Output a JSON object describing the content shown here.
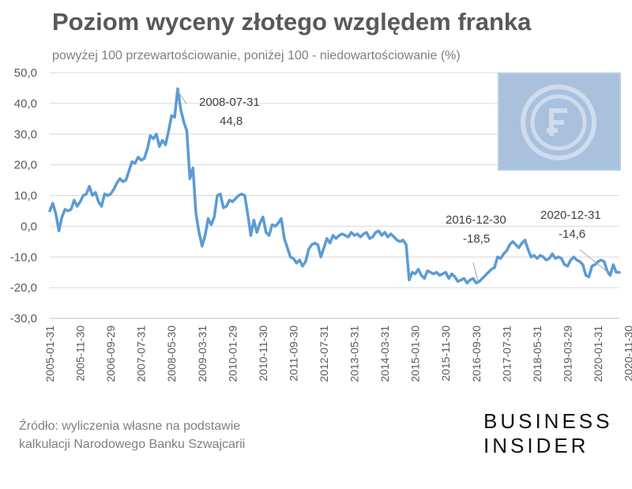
{
  "chart_data": {
    "type": "line",
    "title": "Poziom wyceny złotego względem franka",
    "subtitle": "powyżej 100 przewartościowanie, poniżej 100 - niedowartościowanie (%)",
    "ylim": [
      -30,
      50
    ],
    "y_ticks": [
      "50,0",
      "40,0",
      "30,0",
      "20,0",
      "10,0",
      "0,0",
      "-10,0",
      "-20,0",
      "-30,0"
    ],
    "x_tick_labels": [
      "2005-01-31",
      "2005-11-30",
      "2006-09-29",
      "2007-07-31",
      "2008-05-30",
      "2009-03-31",
      "2010-01-29",
      "2010-11-30",
      "2011-09-30",
      "2012-07-31",
      "2013-05-31",
      "2014-03-31",
      "2015-01-30",
      "2015-11-30",
      "2016-09-30",
      "2017-07-31",
      "2018-05-31",
      "2019-03-29",
      "2020-01-31",
      "2020-11-30"
    ],
    "x_start": "2005-01",
    "x_step": "month",
    "grid": true,
    "line_color": "#5b9bd5",
    "series": [
      {
        "values": [
          5,
          7.5,
          4,
          -1.5,
          3,
          5.5,
          5,
          5.5,
          8.5,
          6.5,
          8,
          10,
          10.5,
          13,
          10,
          11,
          8,
          6.5,
          10.5,
          10,
          10.5,
          12,
          14,
          15.5,
          14.5,
          15,
          18,
          21,
          20.5,
          22.5,
          21.5,
          22,
          25,
          29.5,
          28.5,
          30,
          26,
          28,
          26.5,
          31,
          36,
          35.5,
          44.8,
          38,
          34,
          31,
          15.5,
          19,
          4,
          -2,
          -6.5,
          -3,
          2.5,
          0.5,
          3,
          10,
          10.5,
          6,
          6.5,
          8.5,
          8,
          9,
          10,
          10.5,
          10,
          4,
          -3,
          2,
          -2,
          1,
          3,
          -2,
          -3,
          0.5,
          0,
          1,
          2.5,
          -4,
          -7,
          -10,
          -10.5,
          -12,
          -11,
          -13,
          -11.5,
          -7.5,
          -6,
          -5.5,
          -6,
          -10,
          -7,
          -4,
          -5.5,
          -3,
          -4,
          -3,
          -2.5,
          -3,
          -3.5,
          -2,
          -3,
          -2.5,
          -3.5,
          -2.5,
          -2,
          -4,
          -3.5,
          -2,
          -1.5,
          -3,
          -2,
          -3.5,
          -2.5,
          -3.5,
          -4.5,
          -5,
          -4.5,
          -6,
          -17.5,
          -15,
          -15.5,
          -14,
          -16,
          -17,
          -14.5,
          -15,
          -15.5,
          -15,
          -16,
          -15.5,
          -15,
          -17,
          -15.5,
          -16.5,
          -18,
          -17.5,
          -17,
          -18.5,
          -17.5,
          -17,
          -18.5,
          -18,
          -17,
          -16,
          -15,
          -14,
          -13.5,
          -10,
          -10.5,
          -9,
          -8,
          -6,
          -5,
          -6,
          -7,
          -5.5,
          -4.5,
          -7.5,
          -10,
          -9.5,
          -10.5,
          -9.5,
          -10,
          -11,
          -10.5,
          -9,
          -10.5,
          -10,
          -10.5,
          -12.5,
          -13,
          -11,
          -10,
          -11,
          -11.5,
          -12.5,
          -16,
          -16.5,
          -13,
          -12.5,
          -11.5,
          -11,
          -11.5,
          -14.6,
          -16,
          -12.5,
          -15,
          -15
        ]
      }
    ],
    "annotations": [
      {
        "date": "2008-07-31",
        "value": "44,8"
      },
      {
        "date": "2016-12-30",
        "value": "-18,5"
      },
      {
        "date": "2020-12-31",
        "value": "-14,6"
      }
    ]
  },
  "source": {
    "line1": "Źródło: wyliczenia własne na podstawie",
    "line2": "kalkulacji Narodowego Banku Szwajcarii"
  },
  "brand": {
    "line1": "BUSINESS",
    "line2": "INSIDER"
  },
  "logo_icon": "franc-coin-icon"
}
